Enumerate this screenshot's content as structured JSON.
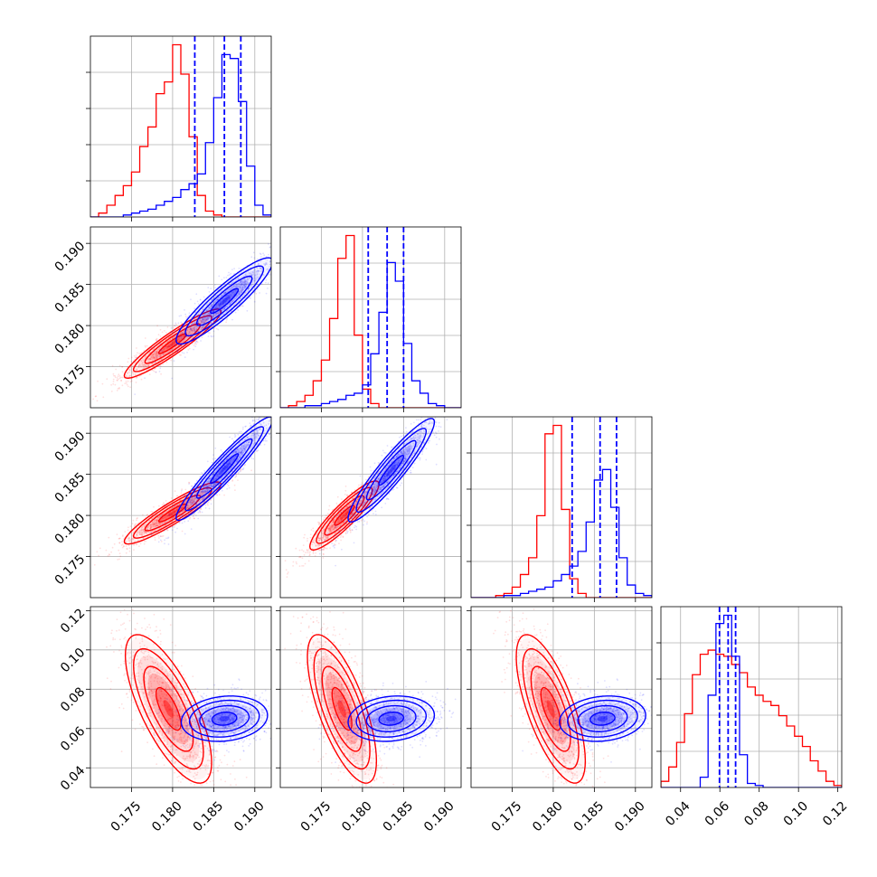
{
  "chart_data": {
    "type": "corner",
    "grid": true,
    "colors": {
      "red": "#ff0000",
      "blue": "#0000ff"
    },
    "parameters": [
      {
        "range": [
          0.17,
          0.192
        ],
        "ticks": [
          0.175,
          0.18,
          0.185,
          0.19
        ],
        "tick_labels": [
          "0.175",
          "0.180",
          "0.185",
          "0.190"
        ]
      },
      {
        "range": [
          0.17,
          0.192
        ],
        "ticks": [
          0.175,
          0.18,
          0.185,
          0.19
        ],
        "tick_labels": [
          "0.175",
          "0.180",
          "0.185",
          "0.190"
        ]
      },
      {
        "range": [
          0.17,
          0.192
        ],
        "ticks": [
          0.175,
          0.18,
          0.185,
          0.19
        ],
        "tick_labels": [
          "0.175",
          "0.180",
          "0.185",
          "0.190"
        ]
      },
      {
        "range": [
          0.03,
          0.122
        ],
        "ticks": [
          0.04,
          0.06,
          0.08,
          0.1,
          0.12
        ],
        "tick_labels": [
          "0.04",
          "0.06",
          "0.08",
          "0.10",
          "0.12"
        ]
      }
    ],
    "histograms": [
      {
        "bins": [
          0.17,
          0.171,
          0.172,
          0.173,
          0.174,
          0.175,
          0.176,
          0.177,
          0.178,
          0.179,
          0.18,
          0.181,
          0.182,
          0.183,
          0.184,
          0.185,
          0.186,
          0.187,
          0.188,
          0.189,
          0.19,
          0.191,
          0.192
        ],
        "red": [
          0,
          2,
          6,
          11,
          16,
          23,
          36,
          46,
          63,
          69,
          88,
          73,
          41,
          11,
          3,
          1,
          0,
          0,
          0,
          0,
          0,
          0
        ],
        "blue": [
          0,
          0,
          0,
          0,
          1,
          2,
          3,
          4,
          6,
          8,
          10,
          14,
          17,
          22,
          38,
          61,
          83,
          81,
          59,
          26,
          6,
          1
        ],
        "quantile_lines": [
          0.1827,
          0.1863,
          0.1883
        ]
      },
      {
        "bins": [
          0.17,
          0.171,
          0.172,
          0.173,
          0.174,
          0.175,
          0.176,
          0.177,
          0.178,
          0.179,
          0.18,
          0.181,
          0.182,
          0.183,
          0.184,
          0.185,
          0.186,
          0.187,
          0.188,
          0.189,
          0.19,
          0.191,
          0.192
        ],
        "red": [
          0,
          1,
          3,
          6,
          13,
          23,
          43,
          72,
          83,
          35,
          9,
          2,
          0,
          0,
          0,
          0,
          0,
          0,
          0,
          0,
          0,
          0
        ],
        "blue": [
          0,
          0,
          0,
          1,
          1,
          2,
          3,
          4,
          6,
          7,
          11,
          26,
          46,
          70,
          61,
          31,
          13,
          7,
          2,
          1,
          0,
          0
        ],
        "quantile_lines": [
          0.1807,
          0.183,
          0.185
        ]
      },
      {
        "bins": [
          0.17,
          0.171,
          0.172,
          0.173,
          0.174,
          0.175,
          0.176,
          0.177,
          0.178,
          0.179,
          0.18,
          0.181,
          0.182,
          0.183,
          0.184,
          0.185,
          0.186,
          0.187,
          0.188,
          0.189,
          0.19,
          0.191,
          0.192
        ],
        "red": [
          0,
          0,
          0,
          1,
          2,
          5,
          11,
          19,
          39,
          78,
          82,
          42,
          9,
          2,
          0,
          0,
          0,
          0,
          0,
          0,
          0,
          0
        ],
        "blue": [
          0,
          0,
          0,
          0,
          1,
          1,
          2,
          3,
          4,
          5,
          8,
          11,
          15,
          22,
          36,
          56,
          61,
          43,
          19,
          6,
          2,
          1
        ],
        "quantile_lines": [
          0.1823,
          0.1857,
          0.1877
        ]
      },
      {
        "bins": [
          0.03,
          0.034,
          0.038,
          0.042,
          0.046,
          0.05,
          0.054,
          0.058,
          0.062,
          0.066,
          0.07,
          0.074,
          0.078,
          0.082,
          0.086,
          0.09,
          0.094,
          0.098,
          0.102,
          0.106,
          0.11,
          0.114,
          0.118,
          0.122
        ],
        "red": [
          3,
          10,
          22,
          36,
          55,
          65,
          67,
          65,
          64,
          60,
          56,
          49,
          45,
          42,
          40,
          35,
          30,
          25,
          20,
          13,
          8,
          3,
          1
        ],
        "blue": [
          0,
          0,
          0,
          0,
          0,
          5,
          45,
          80,
          84,
          64,
          16,
          2,
          1,
          0,
          0,
          0,
          0,
          0,
          0,
          0,
          0,
          0,
          0
        ],
        "quantile_lines": [
          0.0598,
          0.0642,
          0.068
        ]
      }
    ],
    "pairs": [
      {
        "x": 0,
        "y": 1,
        "red": {
          "center": [
            0.18,
            0.1778
          ],
          "sd": [
            0.0028,
            0.002
          ],
          "rho": 0.93
        },
        "blue": {
          "center": [
            0.1863,
            0.183
          ],
          "sd": [
            0.0028,
            0.0025
          ],
          "rho": 0.91
        }
      },
      {
        "x": 0,
        "y": 2,
        "red": {
          "center": [
            0.18,
            0.1803
          ],
          "sd": [
            0.0028,
            0.0018
          ],
          "rho": 0.92
        },
        "blue": {
          "center": [
            0.1863,
            0.1857
          ],
          "sd": [
            0.0028,
            0.003
          ],
          "rho": 0.95
        }
      },
      {
        "x": 1,
        "y": 2,
        "red": {
          "center": [
            0.1778,
            0.18
          ],
          "sd": [
            0.002,
            0.002
          ],
          "rho": 0.9
        },
        "blue": {
          "center": [
            0.1835,
            0.1855
          ],
          "sd": [
            0.0025,
            0.003
          ],
          "rho": 0.93
        }
      },
      {
        "x": 0,
        "y": 3,
        "red": {
          "center": [
            0.1795,
            0.07
          ],
          "sd": [
            0.0025,
            0.018
          ],
          "rho": -0.72
        },
        "blue": {
          "center": [
            0.1863,
            0.065
          ],
          "sd": [
            0.0025,
            0.0055
          ],
          "rho": 0.15
        }
      },
      {
        "x": 1,
        "y": 3,
        "red": {
          "center": [
            0.1775,
            0.07
          ],
          "sd": [
            0.002,
            0.018
          ],
          "rho": -0.7
        },
        "blue": {
          "center": [
            0.1835,
            0.065
          ],
          "sd": [
            0.0025,
            0.0055
          ],
          "rho": 0.15
        }
      },
      {
        "x": 2,
        "y": 3,
        "red": {
          "center": [
            0.1797,
            0.07
          ],
          "sd": [
            0.002,
            0.018
          ],
          "rho": -0.7
        },
        "blue": {
          "center": [
            0.186,
            0.065
          ],
          "sd": [
            0.0025,
            0.0055
          ],
          "rho": 0.15
        }
      }
    ]
  }
}
